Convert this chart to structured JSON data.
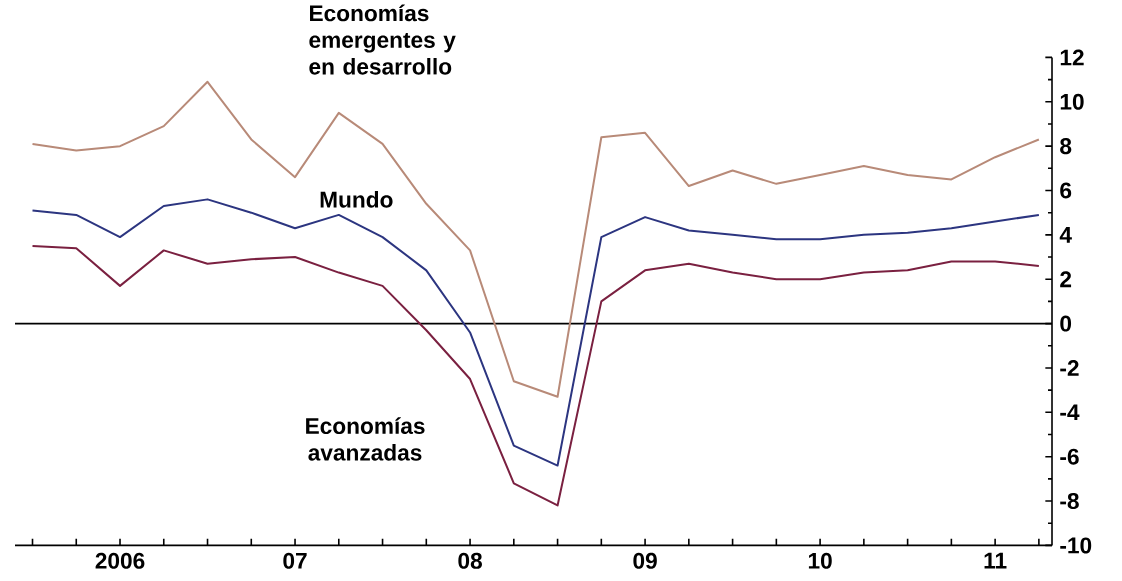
{
  "chart_data": {
    "type": "line",
    "categories": [
      null,
      null,
      "2006",
      null,
      null,
      null,
      "07",
      null,
      null,
      null,
      "08",
      null,
      null,
      null,
      "09",
      null,
      null,
      null,
      "10",
      null,
      null,
      null,
      "11",
      null
    ],
    "series": [
      {
        "name": "Economías emergentes y en desarrollo",
        "color": "#b88a78",
        "values": [
          8.1,
          7.8,
          8.0,
          8.9,
          10.9,
          8.3,
          6.6,
          9.5,
          8.1,
          5.4,
          3.3,
          -2.6,
          -3.3,
          8.4,
          8.6,
          6.2,
          6.9,
          6.3,
          6.7,
          7.1,
          6.7,
          6.5,
          7.5,
          8.3
        ]
      },
      {
        "name": "Mundo",
        "color": "#2c3580",
        "values": [
          5.1,
          4.9,
          3.9,
          5.3,
          5.6,
          5.0,
          4.3,
          4.9,
          3.9,
          2.4,
          -0.4,
          -5.5,
          -6.4,
          3.9,
          4.8,
          4.2,
          4.0,
          3.8,
          3.8,
          4.0,
          4.1,
          4.3,
          4.6,
          4.9
        ]
      },
      {
        "name": "Economías avanzadas",
        "color": "#7a2040",
        "values": [
          3.5,
          3.4,
          1.7,
          3.3,
          2.7,
          2.9,
          3.0,
          2.3,
          1.7,
          -0.3,
          -2.5,
          -7.2,
          -8.2,
          1.0,
          2.4,
          2.7,
          2.3,
          2.0,
          2.0,
          2.3,
          2.4,
          2.8,
          2.8,
          2.6
        ]
      }
    ],
    "ylim": [
      -10,
      12
    ],
    "yticks": [
      -10,
      -8,
      -6,
      -4,
      -2,
      0,
      2,
      4,
      6,
      8,
      10,
      12
    ],
    "ref_lines": [
      {
        "axis": "y",
        "value": 0,
        "color": "#000000"
      }
    ],
    "grid": false,
    "legend": false,
    "marker": "none",
    "line_style": "solid"
  }
}
